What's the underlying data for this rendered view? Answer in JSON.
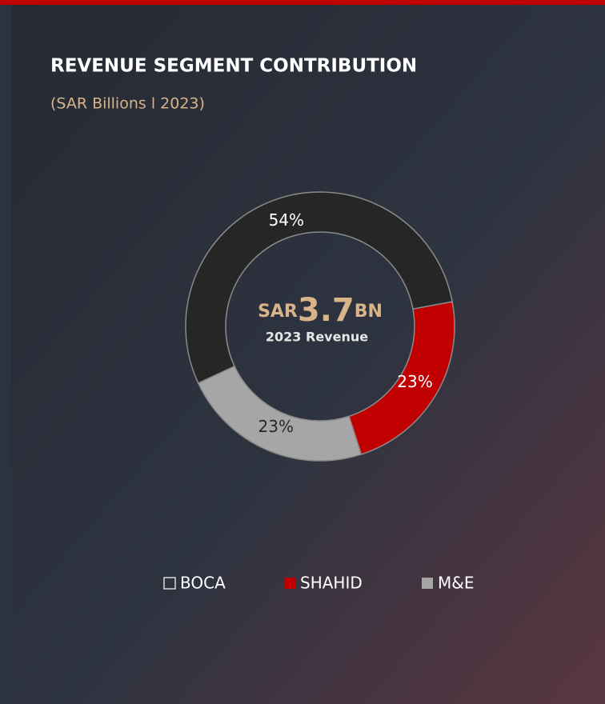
{
  "chart_data": {
    "type": "donut",
    "title": "REVENUE SEGMENT CONTRIBUTION",
    "subtitle": "(SAR Billions l 2023)",
    "center": {
      "prefix": "SAR",
      "value": "3.7",
      "suffix": "BN",
      "caption": "2023 Revenue"
    },
    "categories": [
      "BOCA",
      "SHAHID",
      "M&E"
    ],
    "values": [
      54,
      23,
      23
    ],
    "value_labels": [
      "54%",
      "23%",
      "23%"
    ],
    "colors": [
      "#262626",
      "#c00000",
      "#a6a6a6"
    ],
    "legend": "bottom"
  }
}
